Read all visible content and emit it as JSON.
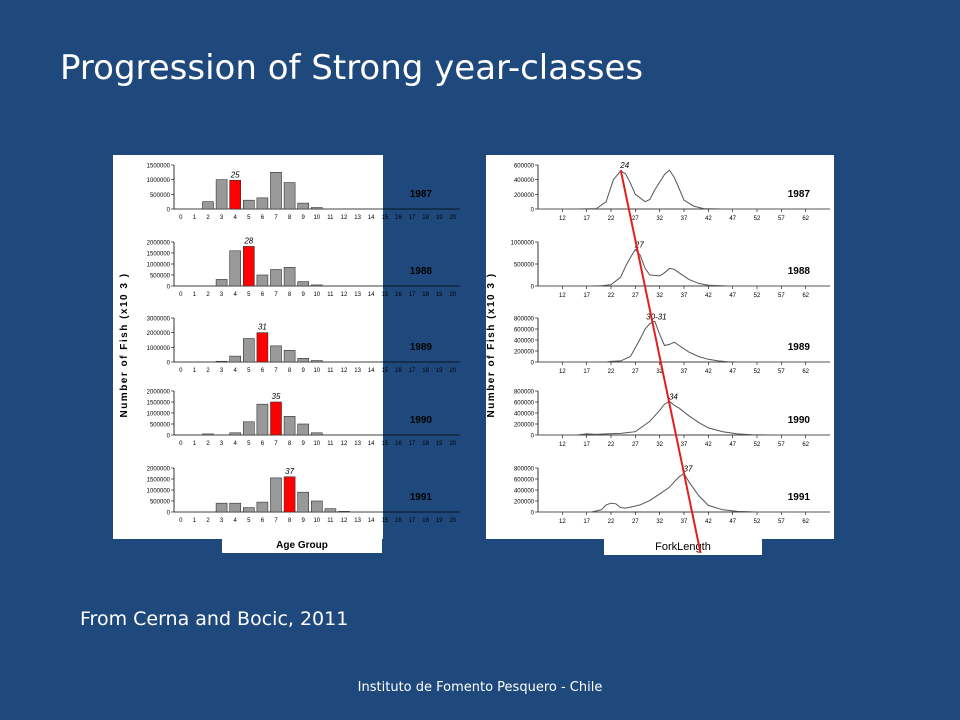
{
  "slide": {
    "title": "Progression of Strong year-classes",
    "citation": "From Cerna and Bocic, 2011",
    "footer": "Instituto de Fomento Pesquero - Chile"
  },
  "colors": {
    "background": "#1f497d",
    "bar": "#999999",
    "highlight": "#ff0000",
    "line": "#555555",
    "trend": "#e02020"
  },
  "chart_data": [
    {
      "type": "bar",
      "panel": "age",
      "xlabel": "Age Group",
      "ylabel": "Number of Fish (x10 3 )",
      "categories": [
        "0",
        "1",
        "2",
        "3",
        "4",
        "5",
        "6",
        "7",
        "8",
        "9",
        "10",
        "11",
        "12",
        "13",
        "14",
        "15",
        "16",
        "17",
        "18",
        "19",
        "20"
      ],
      "series": [
        {
          "year": "1987",
          "mark": "25",
          "highlight_age": 4,
          "yticks": [
            "1500000",
            "1000000",
            "500000",
            "0"
          ],
          "ymax": 1500000,
          "values": [
            0,
            0,
            250000,
            1000000,
            980000,
            300000,
            380000,
            1250000,
            900000,
            200000,
            50000,
            0,
            0,
            0,
            0,
            0,
            0,
            0,
            0,
            0,
            0
          ]
        },
        {
          "year": "1988",
          "mark": "28",
          "highlight_age": 5,
          "yticks": [
            "2000000",
            "1500000",
            "1000000",
            "500000",
            "0"
          ],
          "ymax": 2000000,
          "values": [
            0,
            0,
            0,
            300000,
            1600000,
            1800000,
            500000,
            750000,
            850000,
            200000,
            50000,
            0,
            0,
            0,
            0,
            0,
            0,
            0,
            0,
            0,
            0
          ]
        },
        {
          "year": "1989",
          "mark": "31",
          "highlight_age": 6,
          "yticks": [
            "3000000",
            "2000000",
            "1000000",
            "0"
          ],
          "ymax": 3000000,
          "values": [
            0,
            0,
            0,
            50000,
            400000,
            1600000,
            2000000,
            1100000,
            800000,
            250000,
            100000,
            0,
            0,
            0,
            0,
            0,
            0,
            0,
            0,
            0,
            0
          ]
        },
        {
          "year": "1990",
          "mark": "35",
          "highlight_age": 7,
          "yticks": [
            "2000000",
            "1500000",
            "1000000",
            "500000",
            "0"
          ],
          "ymax": 2000000,
          "values": [
            0,
            0,
            50000,
            0,
            100000,
            600000,
            1400000,
            1500000,
            850000,
            500000,
            100000,
            0,
            0,
            0,
            0,
            0,
            0,
            0,
            0,
            0,
            0
          ]
        },
        {
          "year": "1991",
          "mark": "37",
          "highlight_age": 8,
          "yticks": [
            "2000000",
            "1500000",
            "1000000",
            "500000",
            "0"
          ],
          "ymax": 2000000,
          "values": [
            0,
            0,
            0,
            400000,
            400000,
            200000,
            450000,
            1550000,
            1600000,
            900000,
            500000,
            150000,
            30000,
            0,
            0,
            0,
            0,
            0,
            0,
            0,
            0
          ]
        }
      ]
    },
    {
      "type": "line",
      "panel": "length",
      "xlabel": "ForkLength",
      "ylabel": "Number of Fish (x10 3 )",
      "xticks": [
        "12",
        "17",
        "22",
        "27",
        "32",
        "37",
        "42",
        "47",
        "52",
        "57",
        "62"
      ],
      "xrange": [
        7,
        67
      ],
      "series": [
        {
          "year": "1987",
          "mark": "24",
          "peak_x": 24,
          "yticks": [
            "600000",
            "400000",
            "200000",
            "0"
          ],
          "ymax": 600000,
          "points": [
            [
              7,
              0
            ],
            [
              15,
              0
            ],
            [
              19,
              5000
            ],
            [
              21,
              100000
            ],
            [
              22.5,
              400000
            ],
            [
              24,
              520000
            ],
            [
              25,
              480000
            ],
            [
              26,
              350000
            ],
            [
              27,
              200000
            ],
            [
              29,
              100000
            ],
            [
              30,
              130000
            ],
            [
              31,
              260000
            ],
            [
              33,
              470000
            ],
            [
              34,
              530000
            ],
            [
              35,
              430000
            ],
            [
              36,
              280000
            ],
            [
              37,
              120000
            ],
            [
              39,
              40000
            ],
            [
              41,
              5000
            ],
            [
              45,
              0
            ],
            [
              67,
              0
            ]
          ]
        },
        {
          "year": "1988",
          "mark": "27",
          "peak_x": 27,
          "yticks": [
            "1000000",
            "500000",
            "0"
          ],
          "ymax": 1000000,
          "points": [
            [
              7,
              0
            ],
            [
              18,
              0
            ],
            [
              20,
              5000
            ],
            [
              22,
              30000
            ],
            [
              24,
              200000
            ],
            [
              25,
              450000
            ],
            [
              26,
              650000
            ],
            [
              27,
              830000
            ],
            [
              28,
              700000
            ],
            [
              29,
              400000
            ],
            [
              30,
              250000
            ],
            [
              32,
              230000
            ],
            [
              33,
              300000
            ],
            [
              34,
              400000
            ],
            [
              35,
              380000
            ],
            [
              36,
              300000
            ],
            [
              38,
              150000
            ],
            [
              40,
              60000
            ],
            [
              42,
              15000
            ],
            [
              46,
              0
            ],
            [
              67,
              0
            ]
          ]
        },
        {
          "year": "1989",
          "mark": "30-31",
          "peak_x": 30.5,
          "yticks": [
            "800000",
            "600000",
            "400000",
            "200000",
            "0"
          ],
          "ymax": 800000,
          "points": [
            [
              7,
              0
            ],
            [
              21,
              0
            ],
            [
              22,
              10000
            ],
            [
              24,
              20000
            ],
            [
              26,
              100000
            ],
            [
              28,
              420000
            ],
            [
              29,
              600000
            ],
            [
              30,
              700000
            ],
            [
              31,
              740000
            ],
            [
              32,
              500000
            ],
            [
              33,
              300000
            ],
            [
              34,
              320000
            ],
            [
              35,
              360000
            ],
            [
              36,
              300000
            ],
            [
              38,
              180000
            ],
            [
              40,
              100000
            ],
            [
              42,
              50000
            ],
            [
              44,
              20000
            ],
            [
              46,
              5000
            ],
            [
              48,
              0
            ],
            [
              67,
              0
            ]
          ]
        },
        {
          "year": "1990",
          "mark": "34",
          "peak_x": 34,
          "yticks": [
            "800000",
            "600000",
            "400000",
            "200000",
            "0"
          ],
          "ymax": 800000,
          "points": [
            [
              7,
              0
            ],
            [
              15,
              0
            ],
            [
              17,
              20000
            ],
            [
              19,
              10000
            ],
            [
              21,
              20000
            ],
            [
              24,
              30000
            ],
            [
              27,
              60000
            ],
            [
              30,
              250000
            ],
            [
              32,
              450000
            ],
            [
              33,
              560000
            ],
            [
              34,
              610000
            ],
            [
              35,
              540000
            ],
            [
              36,
              490000
            ],
            [
              38,
              350000
            ],
            [
              40,
              230000
            ],
            [
              42,
              130000
            ],
            [
              45,
              60000
            ],
            [
              48,
              20000
            ],
            [
              51,
              5000
            ],
            [
              55,
              0
            ],
            [
              67,
              0
            ]
          ]
        },
        {
          "year": "1991",
          "mark": "37",
          "peak_x": 37,
          "yticks": [
            "800000",
            "600000",
            "400000",
            "200000",
            "0"
          ],
          "ymax": 800000,
          "points": [
            [
              7,
              0
            ],
            [
              18,
              0
            ],
            [
              20,
              40000
            ],
            [
              21,
              130000
            ],
            [
              22,
              160000
            ],
            [
              23,
              150000
            ],
            [
              24,
              80000
            ],
            [
              25,
              70000
            ],
            [
              26,
              90000
            ],
            [
              28,
              130000
            ],
            [
              30,
              210000
            ],
            [
              32,
              330000
            ],
            [
              34,
              450000
            ],
            [
              35,
              550000
            ],
            [
              36,
              640000
            ],
            [
              37,
              700000
            ],
            [
              38,
              550000
            ],
            [
              40,
              300000
            ],
            [
              42,
              120000
            ],
            [
              45,
              40000
            ],
            [
              48,
              10000
            ],
            [
              52,
              0
            ],
            [
              67,
              0
            ]
          ]
        }
      ]
    }
  ]
}
